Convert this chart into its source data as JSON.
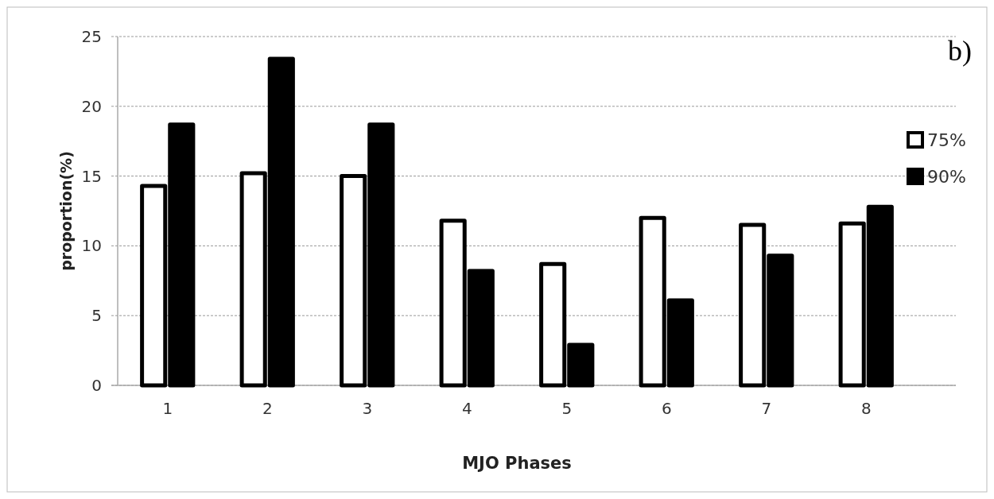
{
  "chart_data": {
    "type": "bar",
    "xlabel": "MJO Phases",
    "ylabel": "proportion(%)",
    "annotations": [
      "b)"
    ],
    "categories": [
      "1",
      "2",
      "3",
      "4",
      "5",
      "6",
      "7",
      "8"
    ],
    "series": [
      {
        "name": "75%",
        "color": "#ffffff",
        "values": [
          14.3,
          15.2,
          15.0,
          11.8,
          8.7,
          12.0,
          11.5,
          11.6
        ]
      },
      {
        "name": "90%",
        "color": "#000000",
        "values": [
          18.7,
          23.4,
          18.7,
          8.2,
          2.9,
          6.1,
          9.3,
          12.8
        ]
      }
    ],
    "ylim": [
      0,
      25
    ],
    "yticks": [
      0,
      5,
      10,
      15,
      20,
      25
    ],
    "grid": "y",
    "legend": "top right"
  }
}
